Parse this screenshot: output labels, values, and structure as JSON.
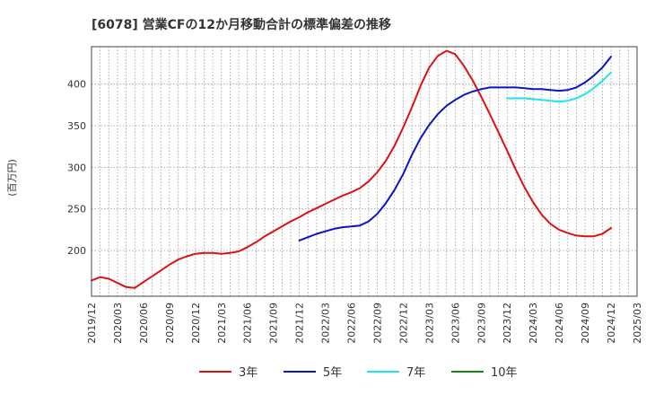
{
  "chart_data": {
    "type": "line",
    "title": "[6078]  営業CFの12か月移動合計の標準偏差の推移",
    "ylabel": "(百万円)",
    "xlabel": "",
    "ylim": [
      145,
      445
    ],
    "yticks": [
      200,
      250,
      300,
      350,
      400
    ],
    "xlim": [
      "2019-12",
      "2025-03"
    ],
    "xticks": [
      "2019/12",
      "2020/03",
      "2020/06",
      "2020/09",
      "2020/12",
      "2021/03",
      "2021/06",
      "2021/09",
      "2021/12",
      "2022/03",
      "2022/06",
      "2022/09",
      "2022/12",
      "2023/03",
      "2023/06",
      "2023/09",
      "2023/12",
      "2024/03",
      "2024/06",
      "2024/09",
      "2024/12",
      "2025/03"
    ],
    "grid": true,
    "legend_position": "bottom",
    "series": [
      {
        "name": "3年",
        "color": "#dd1111",
        "points": [
          [
            "2019-12",
            164
          ],
          [
            "2020-01",
            168
          ],
          [
            "2020-02",
            166
          ],
          [
            "2020-03",
            161
          ],
          [
            "2020-04",
            156
          ],
          [
            "2020-05",
            155
          ],
          [
            "2020-06",
            162
          ],
          [
            "2020-07",
            169
          ],
          [
            "2020-08",
            176
          ],
          [
            "2020-09",
            183
          ],
          [
            "2020-10",
            189
          ],
          [
            "2020-11",
            193
          ],
          [
            "2020-12",
            196
          ],
          [
            "2021-01",
            197
          ],
          [
            "2021-02",
            197
          ],
          [
            "2021-03",
            196
          ],
          [
            "2021-04",
            197
          ],
          [
            "2021-05",
            199
          ],
          [
            "2021-06",
            204
          ],
          [
            "2021-07",
            210
          ],
          [
            "2021-08",
            217
          ],
          [
            "2021-09",
            223
          ],
          [
            "2021-10",
            229
          ],
          [
            "2021-11",
            235
          ],
          [
            "2021-12",
            240
          ],
          [
            "2022-01",
            246
          ],
          [
            "2022-02",
            251
          ],
          [
            "2022-03",
            256
          ],
          [
            "2022-04",
            261
          ],
          [
            "2022-05",
            266
          ],
          [
            "2022-06",
            270
          ],
          [
            "2022-07",
            275
          ],
          [
            "2022-08",
            283
          ],
          [
            "2022-09",
            294
          ],
          [
            "2022-10",
            308
          ],
          [
            "2022-11",
            326
          ],
          [
            "2022-12",
            348
          ],
          [
            "2023-01",
            372
          ],
          [
            "2023-02",
            398
          ],
          [
            "2023-03",
            420
          ],
          [
            "2023-04",
            434
          ],
          [
            "2023-05",
            440
          ],
          [
            "2023-06",
            436
          ],
          [
            "2023-07",
            422
          ],
          [
            "2023-08",
            405
          ],
          [
            "2023-09",
            385
          ],
          [
            "2023-10",
            364
          ],
          [
            "2023-11",
            342
          ],
          [
            "2023-12",
            320
          ],
          [
            "2024-01",
            297
          ],
          [
            "2024-02",
            276
          ],
          [
            "2024-03",
            258
          ],
          [
            "2024-04",
            243
          ],
          [
            "2024-05",
            232
          ],
          [
            "2024-06",
            225
          ],
          [
            "2024-07",
            221
          ],
          [
            "2024-08",
            218
          ],
          [
            "2024-09",
            217
          ],
          [
            "2024-10",
            217
          ],
          [
            "2024-11",
            220
          ],
          [
            "2024-12",
            227
          ]
        ]
      },
      {
        "name": "5年",
        "color": "#0a14c8",
        "points": [
          [
            "2021-12",
            212
          ],
          [
            "2022-01",
            216
          ],
          [
            "2022-02",
            220
          ],
          [
            "2022-03",
            223
          ],
          [
            "2022-04",
            226
          ],
          [
            "2022-05",
            228
          ],
          [
            "2022-06",
            229
          ],
          [
            "2022-07",
            230
          ],
          [
            "2022-08",
            235
          ],
          [
            "2022-09",
            244
          ],
          [
            "2022-10",
            257
          ],
          [
            "2022-11",
            273
          ],
          [
            "2022-12",
            292
          ],
          [
            "2023-01",
            315
          ],
          [
            "2023-02",
            335
          ],
          [
            "2023-03",
            351
          ],
          [
            "2023-04",
            364
          ],
          [
            "2023-05",
            374
          ],
          [
            "2023-06",
            381
          ],
          [
            "2023-07",
            387
          ],
          [
            "2023-08",
            391
          ],
          [
            "2023-09",
            394
          ],
          [
            "2023-10",
            396
          ],
          [
            "2023-11",
            396
          ],
          [
            "2023-12",
            396
          ],
          [
            "2024-01",
            396
          ],
          [
            "2024-02",
            395
          ],
          [
            "2024-03",
            394
          ],
          [
            "2024-04",
            394
          ],
          [
            "2024-05",
            393
          ],
          [
            "2024-06",
            392
          ],
          [
            "2024-07",
            393
          ],
          [
            "2024-08",
            396
          ],
          [
            "2024-09",
            402
          ],
          [
            "2024-10",
            410
          ],
          [
            "2024-11",
            420
          ],
          [
            "2024-12",
            433
          ]
        ]
      },
      {
        "name": "7年",
        "color": "#19e6e6",
        "points": [
          [
            "2023-12",
            383
          ],
          [
            "2024-01",
            383
          ],
          [
            "2024-02",
            383
          ],
          [
            "2024-03",
            382
          ],
          [
            "2024-04",
            381
          ],
          [
            "2024-05",
            380
          ],
          [
            "2024-06",
            379
          ],
          [
            "2024-07",
            380
          ],
          [
            "2024-08",
            383
          ],
          [
            "2024-09",
            388
          ],
          [
            "2024-10",
            395
          ],
          [
            "2024-11",
            404
          ],
          [
            "2024-12",
            414
          ]
        ]
      },
      {
        "name": "10年",
        "color": "#118811",
        "points": []
      }
    ]
  }
}
